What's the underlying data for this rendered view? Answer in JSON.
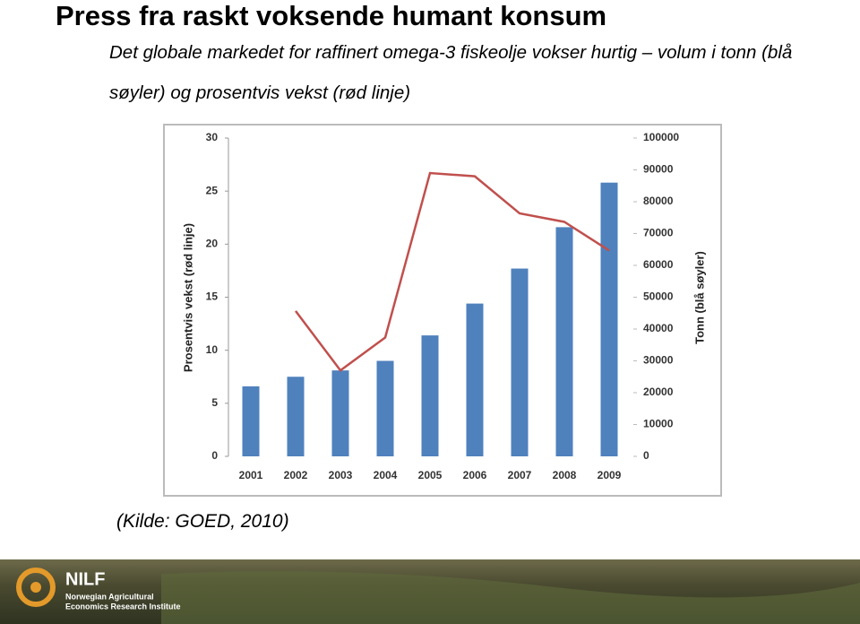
{
  "slide": {
    "title": "Press fra raskt voksende humant konsum",
    "subtitle": "Det globale markedet for raffinert omega-3 fiskeolje vokser hurtig – volum i tonn (blå søyler) og prosentvis vekst (rød linje)",
    "source": "(Kilde: GOED, 2010)",
    "logo": "NILF",
    "logo_text": [
      "Norwegian Agricultural",
      "Economics Research Institute"
    ]
  },
  "chart_data": {
    "type": "bar-line",
    "categories": [
      "2001",
      "2002",
      "2003",
      "2004",
      "2005",
      "2006",
      "2007",
      "2008",
      "2009"
    ],
    "series": [
      {
        "name": "Tonn (blå søyler)",
        "type": "bar",
        "axis": "y2",
        "color": "#4f81bd",
        "values": [
          22000,
          25000,
          27000,
          30000,
          38000,
          48000,
          59000,
          72000,
          86000
        ]
      },
      {
        "name": "Prosentvis vekst (rød linje)",
        "type": "line",
        "color": "#c0504d",
        "values": [
          null,
          13.7,
          8.1,
          11.2,
          26.7,
          26.4,
          22.9,
          22.1,
          19.4
        ]
      }
    ],
    "y_label": "Prosentvis vekst (rød linje)",
    "y2_label": "Tonn (blå søyler)",
    "ylim": [
      0,
      30
    ],
    "yticks": [
      0,
      5,
      10,
      15,
      20,
      25,
      30
    ],
    "y2lim": [
      0,
      100000
    ],
    "y2ticks": [
      0,
      10000,
      20000,
      30000,
      40000,
      50000,
      60000,
      70000,
      80000,
      90000,
      100000
    ],
    "grid": false
  }
}
